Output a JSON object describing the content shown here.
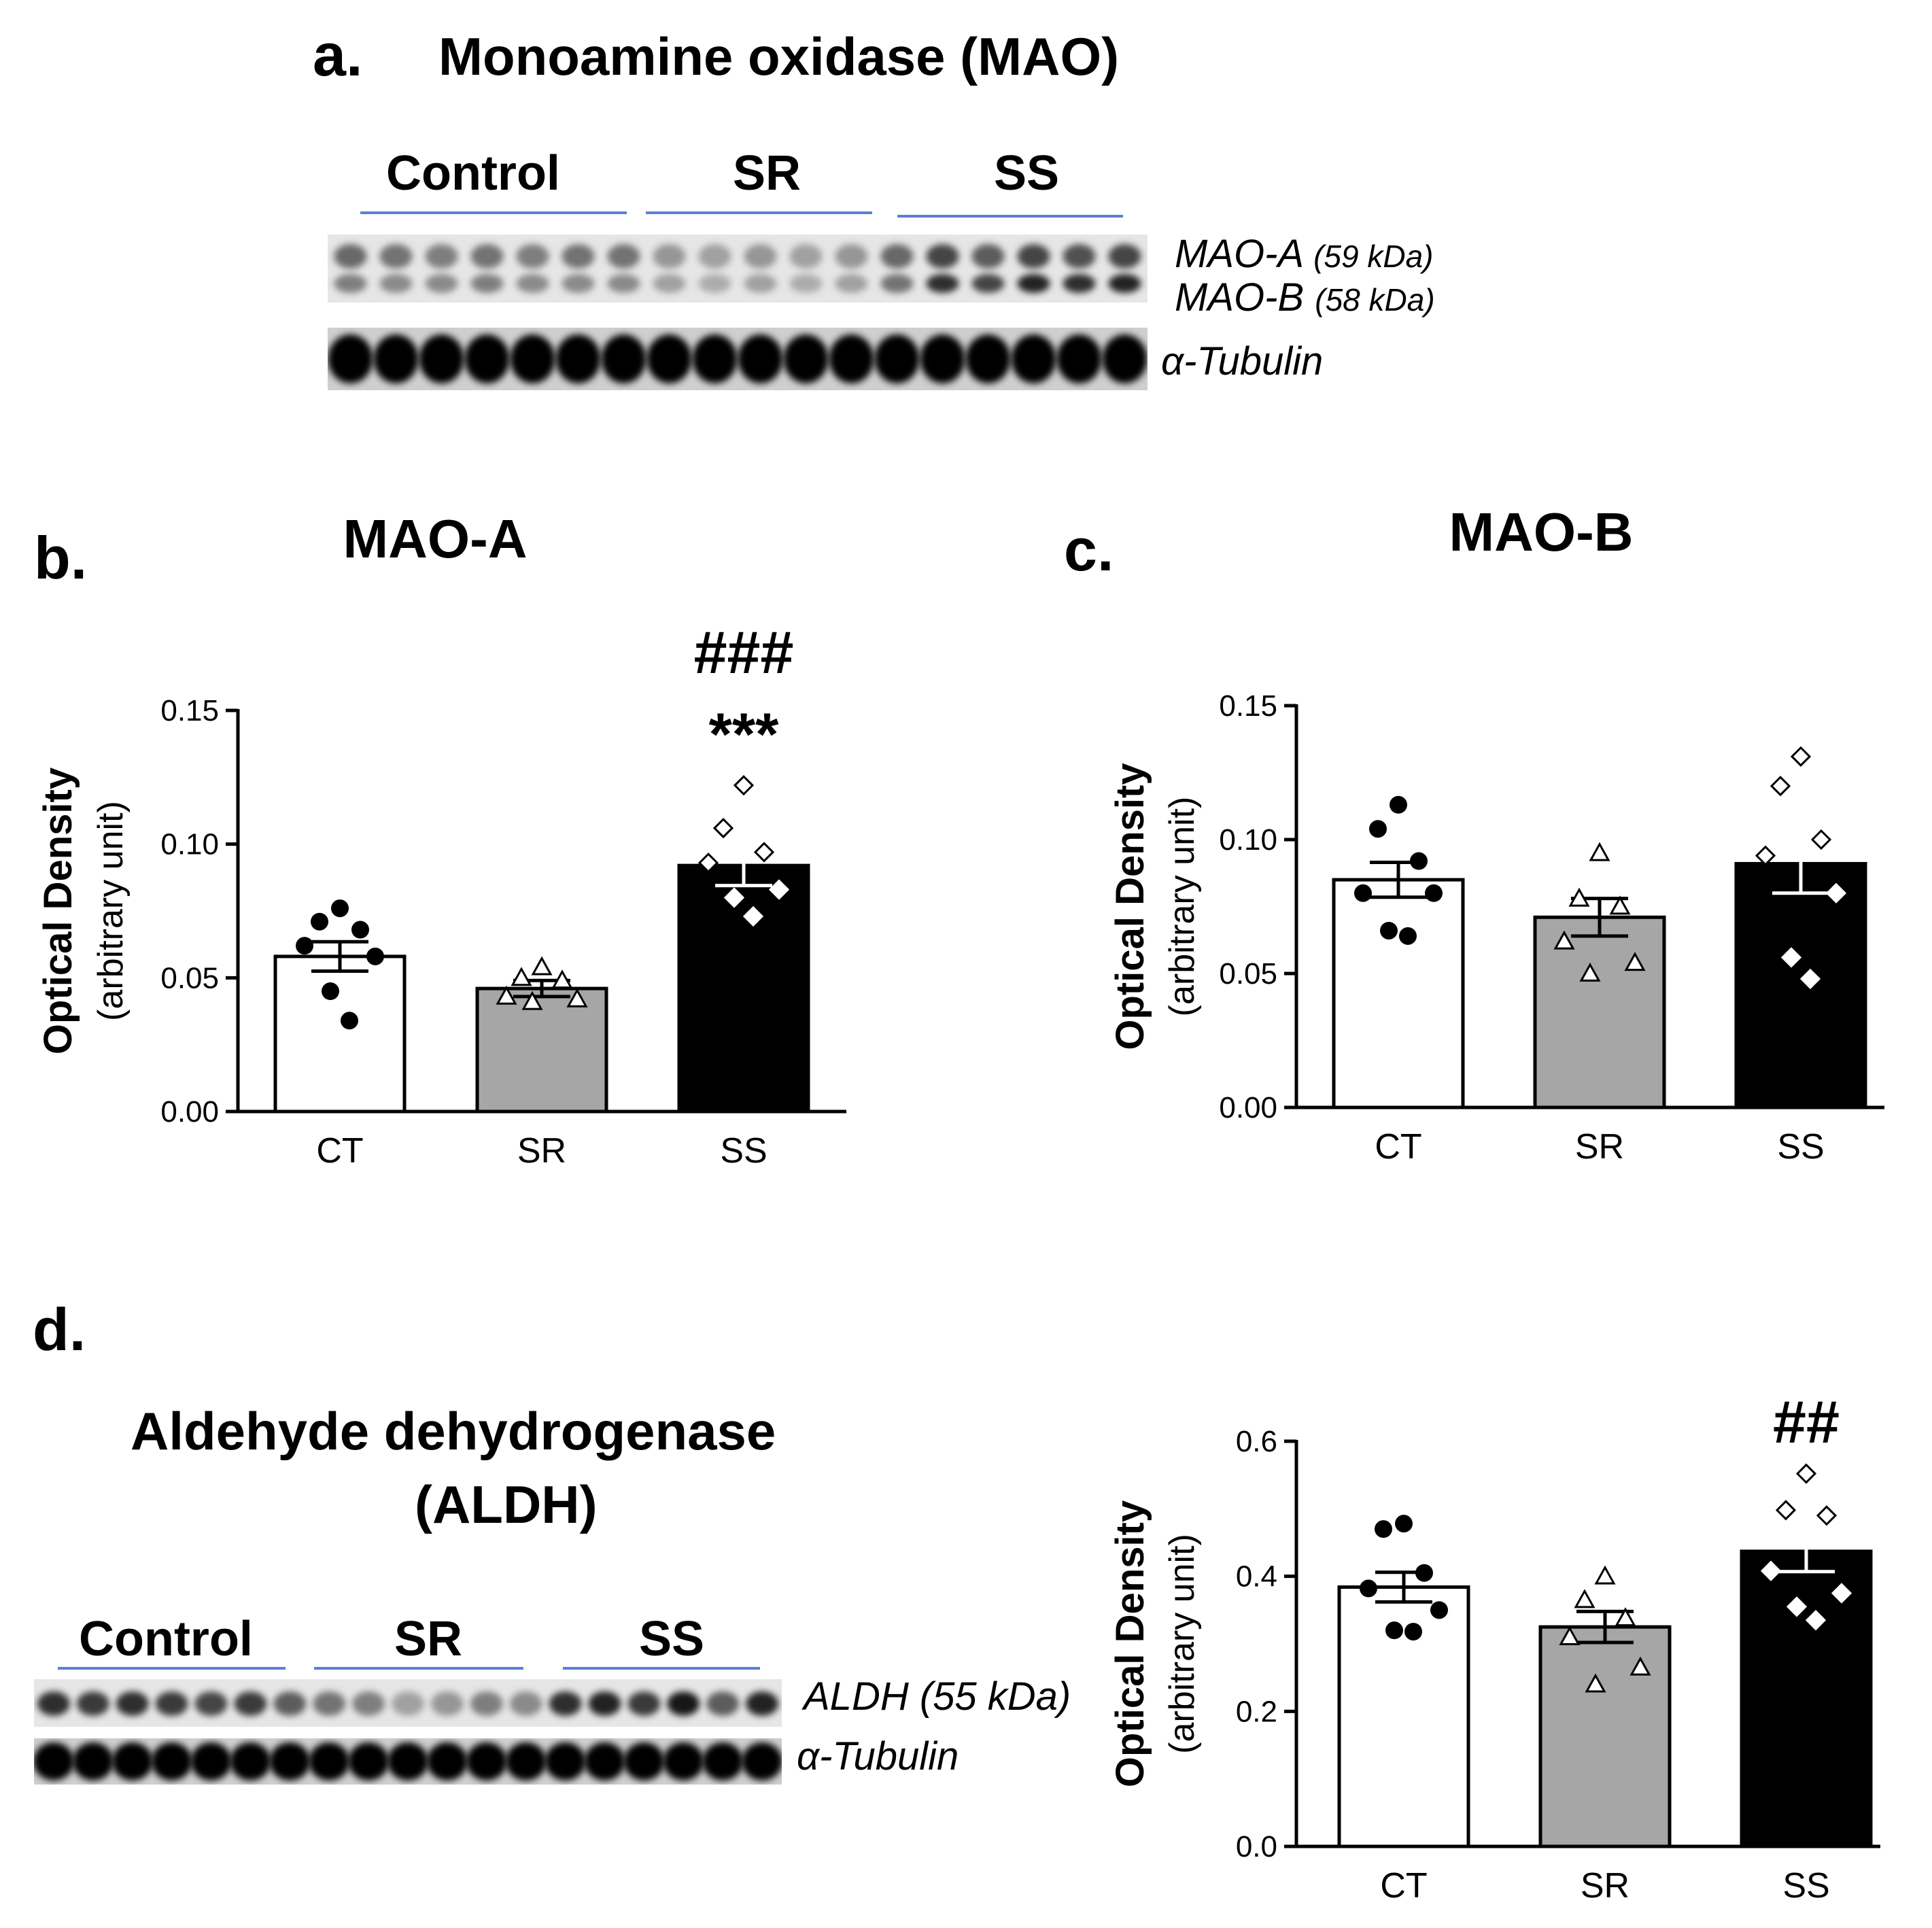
{
  "panels": {
    "a": {
      "letter": "a.",
      "title": "Monoamine oxidase (MAO)"
    },
    "b": {
      "letter": "b."
    },
    "c": {
      "letter": "c."
    },
    "d": {
      "letter": "d.",
      "title_line1": "Aldehyde dehydrogenase",
      "title_line2": "(ALDH)"
    }
  },
  "blot_a": {
    "groups": [
      "Control",
      "SR",
      "SS"
    ],
    "band1_name": "MAO-A",
    "band1_size": "(59 kDa)",
    "band2_name": "MAO-B",
    "band2_size": "(58 kDa)",
    "band3_name": "α-Tubulin",
    "lanes": 18
  },
  "blot_d": {
    "groups": [
      "Control",
      "SR",
      "SS"
    ],
    "band1_name": "ALDH (55 kDa)",
    "band2_name": "α-Tubulin",
    "lanes": 19
  },
  "chart_data": [
    {
      "id": "mao-a",
      "type": "bar",
      "title": "MAO-A",
      "ylabel": "Optical Density",
      "ylabel2": "(arbitrary unit)",
      "categories": [
        "CT",
        "SR",
        "SS"
      ],
      "values": [
        0.058,
        0.046,
        0.092
      ],
      "sem": [
        0.0055,
        0.003,
        0.0075
      ],
      "ylim": [
        0,
        0.15
      ],
      "yticks": [
        "0.00",
        "0.05",
        "0.10",
        "0.15"
      ],
      "ytick_values": [
        0,
        0.05,
        0.1,
        0.15
      ],
      "bar_colors": [
        "#ffffff",
        "#a6a6a6",
        "#000000"
      ],
      "points": [
        [
          0.076,
          0.071,
          0.068,
          0.062,
          0.058,
          0.045,
          0.034
        ],
        [
          0.054,
          0.05,
          0.049,
          0.043,
          0.042,
          0.041
        ],
        [
          0.122,
          0.106,
          0.097,
          0.093,
          0.083,
          0.08,
          0.073
        ]
      ],
      "markers": [
        "circle",
        "triangle",
        "diamond"
      ],
      "annotations": {
        "SS": [
          "###",
          "***"
        ]
      }
    },
    {
      "id": "mao-b",
      "type": "bar",
      "title": "MAO-B",
      "ylabel": "Optical Density",
      "ylabel2": "(arbitrary unit)",
      "categories": [
        "CT",
        "SR",
        "SS"
      ],
      "values": [
        0.085,
        0.071,
        0.091
      ],
      "sem": [
        0.0065,
        0.007,
        0.011
      ],
      "ylim": [
        0,
        0.15
      ],
      "yticks": [
        "0.00",
        "0.05",
        "0.10",
        "0.15"
      ],
      "ytick_values": [
        0,
        0.05,
        0.1,
        0.15
      ],
      "bar_colors": [
        "#ffffff",
        "#a6a6a6",
        "#000000"
      ],
      "points": [
        [
          0.113,
          0.104,
          0.092,
          0.08,
          0.08,
          0.066,
          0.064
        ],
        [
          0.095,
          0.078,
          0.075,
          0.062,
          0.054,
          0.05
        ],
        [
          0.131,
          0.12,
          0.1,
          0.094,
          0.08,
          0.056,
          0.048
        ]
      ],
      "markers": [
        "circle",
        "triangle",
        "diamond"
      ],
      "annotations": {}
    },
    {
      "id": "aldh",
      "type": "bar",
      "title": "",
      "ylabel": "Optical Density",
      "ylabel2": "(arbitrary unit)",
      "categories": [
        "CT",
        "SR",
        "SS"
      ],
      "values": [
        0.384,
        0.325,
        0.437
      ],
      "sem": [
        0.022,
        0.023,
        0.03
      ],
      "ylim": [
        0,
        0.6
      ],
      "yticks": [
        "0.0",
        "0.2",
        "0.4",
        "0.6"
      ],
      "ytick_values": [
        0,
        0.2,
        0.4,
        0.6
      ],
      "bar_colors": [
        "#ffffff",
        "#a6a6a6",
        "#000000"
      ],
      "points": [
        [
          0.478,
          0.47,
          0.405,
          0.382,
          0.35,
          0.32,
          0.318
        ],
        [
          0.4,
          0.365,
          0.338,
          0.31,
          0.265,
          0.24
        ],
        [
          0.552,
          0.498,
          0.49,
          0.408,
          0.375,
          0.355,
          0.335
        ]
      ],
      "markers": [
        "circle",
        "triangle",
        "diamond"
      ],
      "annotations": {
        "SS": [
          "##"
        ]
      }
    }
  ]
}
